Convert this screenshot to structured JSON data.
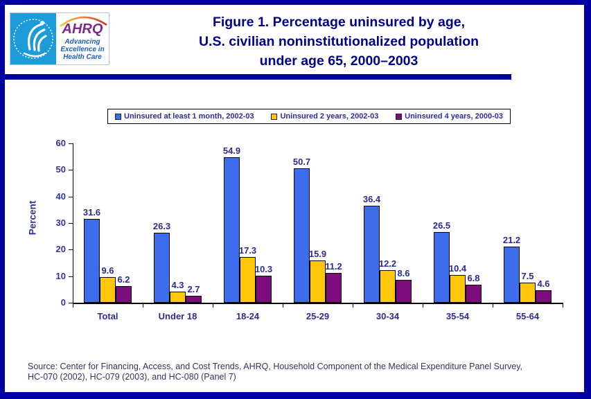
{
  "header": {
    "logo": {
      "acronym": "AHRQ",
      "tagline_lines": [
        "Advancing",
        "Excellence in",
        "Health Care"
      ]
    },
    "title_lines": [
      "Figure 1. Percentage uninsured by age,",
      "U.S. civilian noninstitutionalized population",
      "under age 65, 2000–2003"
    ]
  },
  "chart_data": {
    "type": "bar",
    "title": "Figure 1. Percentage uninsured by age, U.S. civilian noninstitutionalized population under age 65, 2000–2003",
    "categories": [
      "Total",
      "Under 18",
      "18-24",
      "25-29",
      "30-34",
      "35-54",
      "55-64"
    ],
    "series": [
      {
        "name": "Uninsured at least 1 month, 2002-03",
        "color": "#3D6CEC",
        "values": [
          31.6,
          26.3,
          54.9,
          50.7,
          36.4,
          26.5,
          21.2
        ]
      },
      {
        "name": "Uninsured 2 years, 2002-03",
        "color": "#FFC60B",
        "values": [
          9.6,
          4.3,
          17.3,
          15.9,
          12.2,
          10.4,
          7.5
        ]
      },
      {
        "name": "Uninsured 4 years, 2000-03",
        "color": "#7D0C7D",
        "values": [
          6.2,
          2.7,
          10.3,
          11.2,
          8.6,
          6.8,
          4.6
        ]
      }
    ],
    "xlabel": "",
    "ylabel": "Percent",
    "ylim": [
      0,
      60
    ],
    "yticks": [
      0,
      10,
      20,
      30,
      40,
      50,
      60
    ],
    "grid": false,
    "legend_position": "top"
  },
  "footer": {
    "source_lines": [
      "Source: Center for Financing, Access, and Cost Trends, AHRQ, Household Component of the Medical Expenditure Panel Survey,",
      "HC-070 (2002), HC-079 (2003), and HC-080 (Panel 7)"
    ]
  }
}
